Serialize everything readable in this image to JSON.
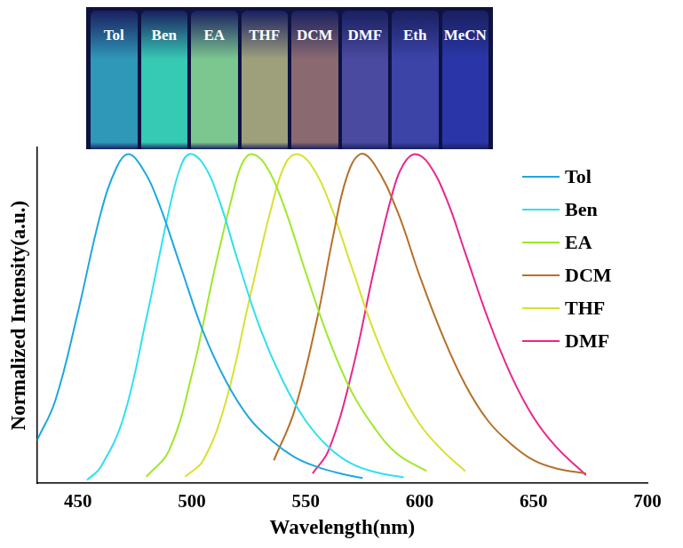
{
  "chart_data": {
    "type": "line",
    "x_label": "Wavelength(nm)",
    "y_label": "Normalized Intensity(a.u.)",
    "inset_labels": [
      "Tol",
      "Ben",
      "EA",
      "THF",
      "DCM",
      "DMF",
      "Eth",
      "MeCN"
    ],
    "xlim": [
      432,
      700
    ],
    "xticks": [
      450,
      500,
      550,
      600,
      650,
      700
    ],
    "ylim": [
      0,
      1.02
    ],
    "tick_labels": "x",
    "grid": false,
    "legend": "upper right",
    "series": [
      {
        "name": "Tol",
        "color": "#1ea7e0",
        "x": [
          432,
          440,
          450,
          460,
          467,
          472,
          478,
          485,
          495,
          505,
          515,
          525,
          535,
          545,
          555,
          565,
          575
        ],
        "values": [
          0.13,
          0.25,
          0.52,
          0.82,
          0.96,
          1.0,
          0.96,
          0.86,
          0.66,
          0.46,
          0.31,
          0.2,
          0.13,
          0.08,
          0.05,
          0.03,
          0.016
        ]
      },
      {
        "name": "Ben",
        "color": "#2fe0ee",
        "x": [
          454,
          460,
          470,
          480,
          490,
          495,
          499,
          505,
          512,
          520,
          530,
          540,
          550,
          560,
          570,
          580,
          593
        ],
        "values": [
          0.01,
          0.05,
          0.2,
          0.5,
          0.83,
          0.96,
          1.0,
          0.97,
          0.86,
          0.68,
          0.47,
          0.31,
          0.19,
          0.11,
          0.06,
          0.035,
          0.018
        ]
      },
      {
        "name": "EA",
        "color": "#9ee82a",
        "x": [
          480,
          490,
          500,
          510,
          518,
          522,
          526,
          532,
          540,
          550,
          560,
          570,
          580,
          590,
          603
        ],
        "values": [
          0.02,
          0.1,
          0.33,
          0.65,
          0.88,
          0.97,
          1.0,
          0.97,
          0.85,
          0.64,
          0.44,
          0.28,
          0.17,
          0.09,
          0.037
        ]
      },
      {
        "name": "DCM",
        "color": "#b5702a",
        "x": [
          536,
          545,
          555,
          562,
          568,
          574,
          580,
          590,
          600,
          610,
          620,
          630,
          640,
          650,
          660,
          673
        ],
        "values": [
          0.07,
          0.22,
          0.5,
          0.75,
          0.93,
          1.0,
          0.97,
          0.83,
          0.63,
          0.45,
          0.3,
          0.19,
          0.12,
          0.07,
          0.045,
          0.03
        ]
      },
      {
        "name": "THF",
        "color": "#d8e030",
        "x": [
          497,
          505,
          515,
          525,
          535,
          541,
          546,
          552,
          560,
          570,
          580,
          590,
          600,
          610,
          620
        ],
        "values": [
          0.02,
          0.07,
          0.25,
          0.55,
          0.84,
          0.97,
          1.0,
          0.97,
          0.86,
          0.66,
          0.46,
          0.3,
          0.18,
          0.1,
          0.037
        ]
      },
      {
        "name": "DMF",
        "color": "#e8268c",
        "x": [
          553,
          560,
          570,
          580,
          588,
          593,
          598,
          604,
          612,
          620,
          630,
          640,
          650,
          660,
          673
        ],
        "values": [
          0.03,
          0.1,
          0.33,
          0.65,
          0.88,
          0.97,
          1.0,
          0.97,
          0.86,
          0.7,
          0.5,
          0.33,
          0.2,
          0.11,
          0.025
        ]
      }
    ]
  }
}
